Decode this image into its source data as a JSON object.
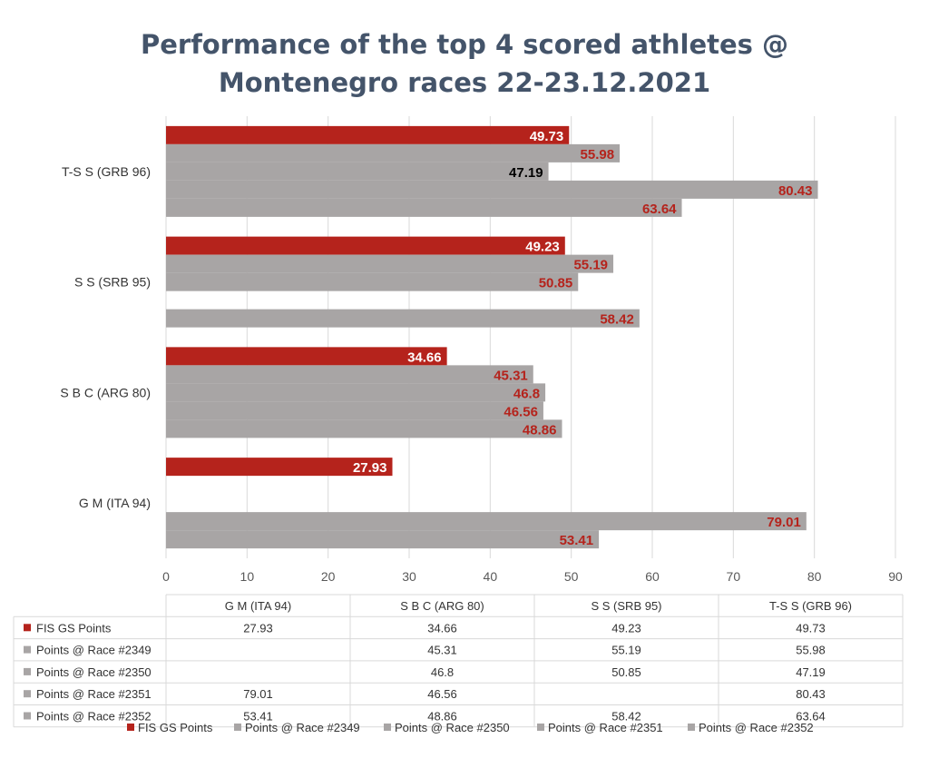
{
  "title_line1": "Performance of the top 4 scored athletes @",
  "title_line2": "Montenegro races 22-23.12.2021",
  "colors": {
    "fis": "#b5231c",
    "race": "#a8a5a5",
    "grid": "#d9d9d9",
    "label_red": "#b5231c",
    "label_white": "#ffffff",
    "label_black": "#000000"
  },
  "chart_data": {
    "type": "bar",
    "orientation": "horizontal",
    "title": "Performance of the top 4 scored athletes @ Montenegro races 22-23.12.2021",
    "categories": [
      "G M  (ITA 94)",
      "S B C (ARG 80)",
      "S S (SRB 95)",
      "T-S S (GRB 96)"
    ],
    "xlim": [
      0,
      90
    ],
    "xticks": [
      0,
      10,
      20,
      30,
      40,
      50,
      60,
      70,
      80,
      90
    ],
    "grid": true,
    "legend_position": "bottom",
    "data_table": true,
    "series": [
      {
        "name": "FIS GS Points",
        "color": "#b5231c",
        "values": [
          27.93,
          34.66,
          49.23,
          49.73
        ]
      },
      {
        "name": "Points @ Race #2349",
        "color": "#a8a5a5",
        "values": [
          null,
          45.31,
          55.19,
          55.98
        ]
      },
      {
        "name": "Points @ Race #2350",
        "color": "#a8a5a5",
        "values": [
          null,
          46.8,
          50.85,
          47.19
        ]
      },
      {
        "name": "Points @ Race #2351",
        "color": "#a8a5a5",
        "values": [
          79.01,
          46.56,
          null,
          80.43
        ]
      },
      {
        "name": "Points @ Race #2352",
        "color": "#a8a5a5",
        "values": [
          53.41,
          48.86,
          58.42,
          63.64
        ]
      }
    ],
    "table_values": [
      [
        "27.93",
        "34.66",
        "49.23",
        "49.73"
      ],
      [
        "",
        "45.31",
        "55.19",
        "55.98"
      ],
      [
        "",
        "46.8",
        "50.85",
        "47.19"
      ],
      [
        "79.01",
        "46.56",
        "",
        "80.43"
      ],
      [
        "53.41",
        "48.86",
        "58.42",
        "63.64"
      ]
    ]
  }
}
